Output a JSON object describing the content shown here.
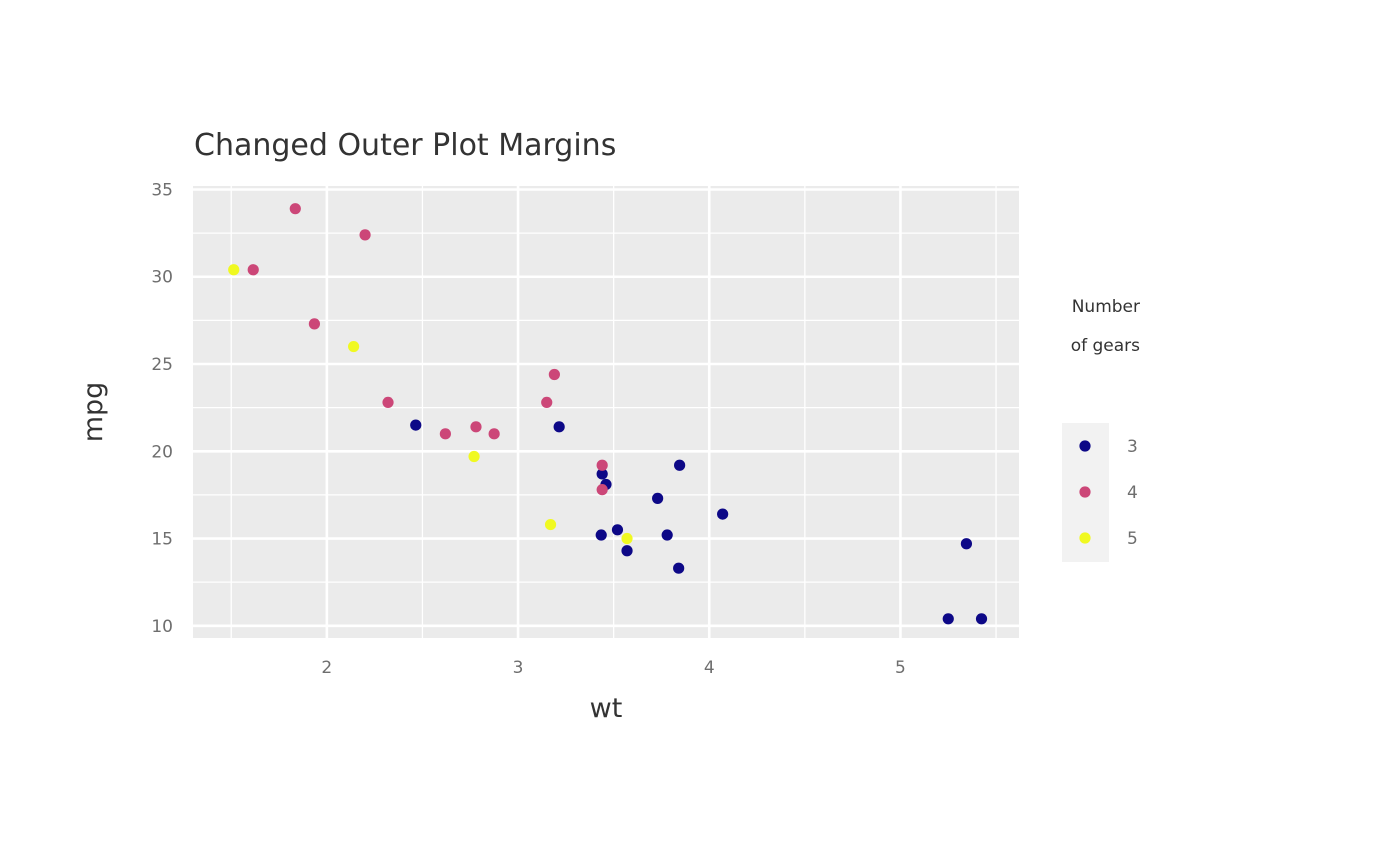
{
  "chart_data": {
    "type": "scatter",
    "title": "Changed Outer Plot Margins",
    "xlabel": "wt",
    "ylabel": "mpg",
    "xlim": [
      1.3,
      5.62
    ],
    "ylim": [
      9.3,
      35.2
    ],
    "x_ticks": [
      2,
      3,
      4,
      5
    ],
    "x_tick_labels": [
      "2",
      "3",
      "4",
      "5"
    ],
    "y_ticks": [
      10,
      15,
      20,
      25,
      30,
      35
    ],
    "y_tick_labels": [
      "10",
      "15",
      "20",
      "25",
      "30",
      "35"
    ],
    "grid": true,
    "legend": {
      "title_lines": [
        "Number",
        "of gears"
      ],
      "placement": "right"
    },
    "series": [
      {
        "name": "3",
        "color": "#0d0887",
        "points": [
          [
            3.215,
            21.4
          ],
          [
            3.44,
            18.7
          ],
          [
            3.46,
            18.1
          ],
          [
            3.57,
            14.3
          ],
          [
            4.07,
            16.4
          ],
          [
            3.73,
            17.3
          ],
          [
            3.78,
            15.2
          ],
          [
            5.25,
            10.4
          ],
          [
            5.424,
            10.4
          ],
          [
            5.345,
            14.7
          ],
          [
            2.465,
            21.5
          ],
          [
            3.52,
            15.5
          ],
          [
            3.435,
            15.2
          ],
          [
            3.84,
            13.3
          ],
          [
            3.845,
            19.2
          ]
        ]
      },
      {
        "name": "4",
        "color": "#cc4778",
        "points": [
          [
            2.62,
            21.0
          ],
          [
            2.875,
            21.0
          ],
          [
            2.32,
            22.8
          ],
          [
            3.19,
            24.4
          ],
          [
            3.15,
            22.8
          ],
          [
            3.44,
            19.2
          ],
          [
            3.44,
            17.8
          ],
          [
            2.2,
            32.4
          ],
          [
            1.615,
            30.4
          ],
          [
            1.835,
            33.9
          ],
          [
            1.935,
            27.3
          ],
          [
            2.78,
            21.4
          ]
        ]
      },
      {
        "name": "5",
        "color": "#f0f921",
        "points": [
          [
            2.14,
            26.0
          ],
          [
            1.513,
            30.4
          ],
          [
            3.17,
            15.8
          ],
          [
            2.77,
            19.7
          ],
          [
            3.57,
            15.0
          ]
        ]
      }
    ]
  }
}
